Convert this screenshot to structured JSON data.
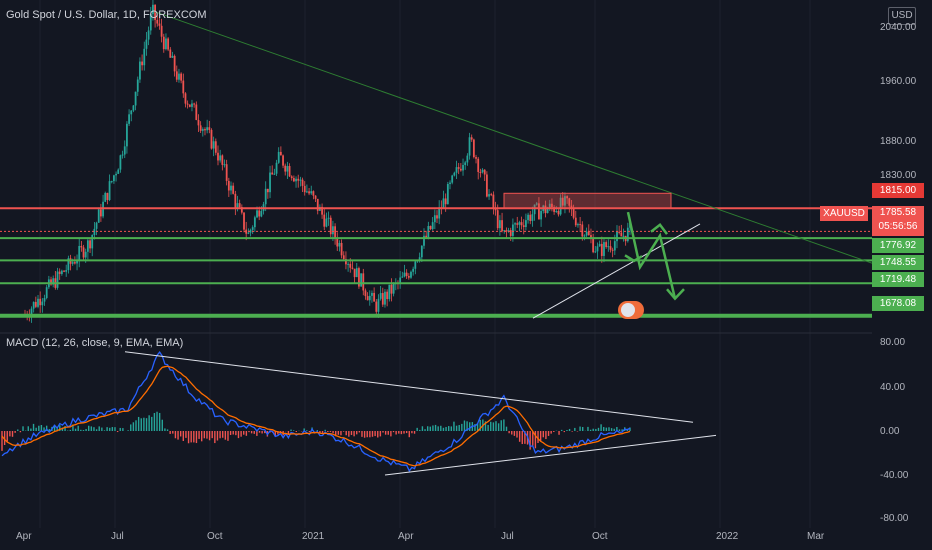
{
  "header": {
    "title": "Gold Spot / U.S. Dollar, 1D, FOREXCOM"
  },
  "currency_badge": "USD",
  "macd_header": "MACD (12, 26, close, 9, EMA, EMA)",
  "symbol_tag": "XAUUSD",
  "current_price": "1785.58",
  "countdown": "05:56:56",
  "colors": {
    "background": "#131722",
    "up": "#26a69a",
    "down": "#ef5350",
    "level_red": "#ef5350",
    "level_green": "#4caf50",
    "macd_line": "#2962ff",
    "signal_line": "#ff6d00"
  },
  "chart_data": [
    {
      "type": "candlestick",
      "title": "Gold Spot / U.S. Dollar, 1D, FOREXCOM",
      "x_tick_labels": [
        "Apr",
        "Jul",
        "Oct",
        "2021",
        "Apr",
        "Jul",
        "Oct",
        "2022",
        "Mar"
      ],
      "y_tick_labels": [
        "2040.00",
        "1960.00",
        "1880.00",
        "1830.00"
      ],
      "ylim": [
        1660,
        2080
      ],
      "price_labels": [
        {
          "value": "1815.00",
          "color": "red"
        },
        {
          "value": "1776.92",
          "color": "green"
        },
        {
          "value": "1748.55",
          "color": "green"
        },
        {
          "value": "1719.48",
          "color": "green"
        },
        {
          "value": "1678.08",
          "color": "green"
        }
      ],
      "horizontal_levels": [
        1815,
        1776.92,
        1748.55,
        1719.48,
        1678.08
      ],
      "close_path": [
        [
          "2020-04",
          1680
        ],
        [
          "2020-05",
          1725
        ],
        [
          "2020-06",
          1770
        ],
        [
          "2020-07",
          1880
        ],
        [
          "2020-08",
          2065
        ],
        [
          "2020-09",
          1960
        ],
        [
          "2020-10",
          1890
        ],
        [
          "2020-11",
          1780
        ],
        [
          "2020-12",
          1880
        ],
        [
          "2021-01",
          1830
        ],
        [
          "2021-02",
          1760
        ],
        [
          "2021-03",
          1690
        ],
        [
          "2021-04",
          1730
        ],
        [
          "2021-05",
          1810
        ],
        [
          "2021-06",
          1900
        ],
        [
          "2021-07",
          1780
        ],
        [
          "2021-08",
          1810
        ],
        [
          "2021-09",
          1820
        ],
        [
          "2021-10",
          1760
        ],
        [
          "2021-11",
          1786
        ]
      ]
    },
    {
      "type": "macd",
      "title": "MACD (12, 26, close, 9, EMA, EMA)",
      "y_tick_labels": [
        "80.00",
        "40.00",
        "0.00",
        "-40.00",
        "-80.00"
      ],
      "ylim": [
        -80,
        80
      ]
    }
  ]
}
